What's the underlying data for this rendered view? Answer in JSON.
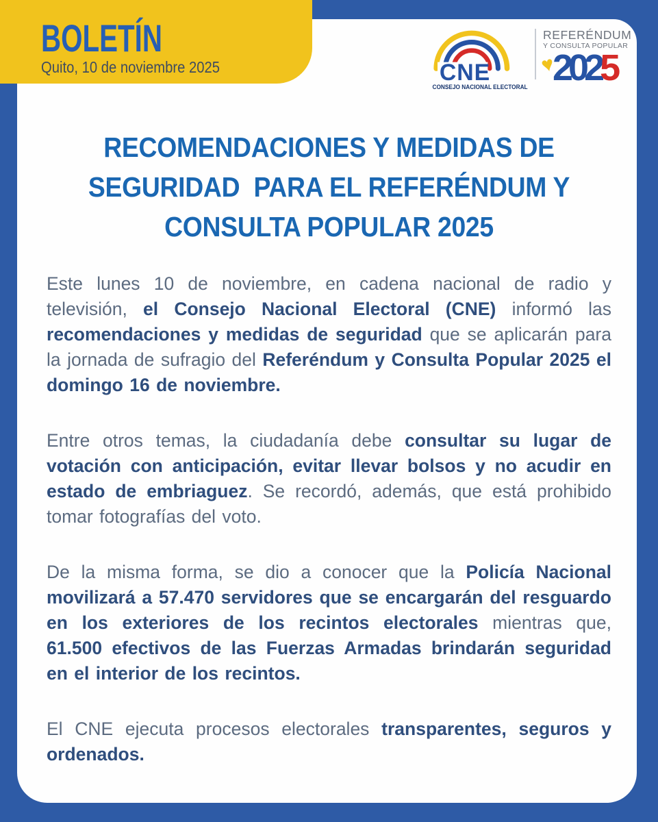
{
  "colors": {
    "page_blue": "#2e5ba6",
    "card_white": "#fefefe",
    "yellow": "#f1c31d",
    "boletin_blue": "#275fb3",
    "date_color": "#3f4c60",
    "heading_blue": "#1a67b2",
    "body_text": "#5c6b80",
    "body_bold": "#2f4e7d",
    "cne_blue": "#2653a4",
    "cne_red": "#d52b28",
    "cne_navy": "#17356d",
    "logo_gray": "#6d737d",
    "divider": "#c7ccd3",
    "year_blue": "#2653a4",
    "year_red": "#d52b28"
  },
  "header": {
    "badge": {
      "title": "BOLETÍN",
      "date": "Quito, 10 de noviembre 2025"
    },
    "cne_logo": {
      "acronym": "CNE",
      "subtitle": "CONSEJO NACIONAL ELECTORAL"
    },
    "event_logo": {
      "line1": "REFERÉNDUM",
      "line2": "Y CONSULTA POPULAR",
      "year": "2025",
      "year_digits": [
        "2",
        "0",
        "2",
        "5"
      ],
      "heart_icon": "♥"
    }
  },
  "content": {
    "title_lines": [
      "RECOMENDACIONES Y MEDIDAS DE",
      "SEGURIDAD  PARA EL REFERÉNDUM Y",
      "CONSULTA POPULAR 2025"
    ],
    "paragraphs": [
      {
        "runs": [
          {
            "text": "Este lunes 10 de noviembre, en cadena nacional de radio y televisión, ",
            "bold": false
          },
          {
            "text": "el Consejo  Nacional Electoral (CNE)",
            "bold": true
          },
          {
            "text": " informó las ",
            "bold": false
          },
          {
            "text": "recomendaciones y medidas de seguridad",
            "bold": true
          },
          {
            "text": " que se aplicarán para la jornada de sufragio del ",
            "bold": false
          },
          {
            "text": "Referéndum y Consulta Popular 2025 el domingo 16 de noviembre.",
            "bold": true
          }
        ]
      },
      {
        "runs": [
          {
            "text": "Entre otros temas, la ciudadanía debe ",
            "bold": false
          },
          {
            "text": "consultar su lugar de votación con anticipación,  evitar llevar bolsos y no acudir en estado de embriaguez",
            "bold": true
          },
          {
            "text": ". Se recordó, además, que está prohibido tomar fotografías del voto.",
            "bold": false
          }
        ]
      },
      {
        "runs": [
          {
            "text": "De la misma forma, se dio a conocer que la ",
            "bold": false
          },
          {
            "text": "Policía Nacional movilizará a 57.470 servidores que se encargarán del resguardo en los exteriores de los recintos electorales",
            "bold": true
          },
          {
            "text": " mientras que, ",
            "bold": false
          },
          {
            "text": "61.500 efectivos de las Fuerzas Armadas brindarán seguridad en el interior de los recintos.",
            "bold": true
          }
        ]
      },
      {
        "runs": [
          {
            "text": "El CNE ejecuta procesos electorales ",
            "bold": false
          },
          {
            "text": "transparentes, seguros y ordenados.",
            "bold": true
          }
        ]
      }
    ]
  }
}
